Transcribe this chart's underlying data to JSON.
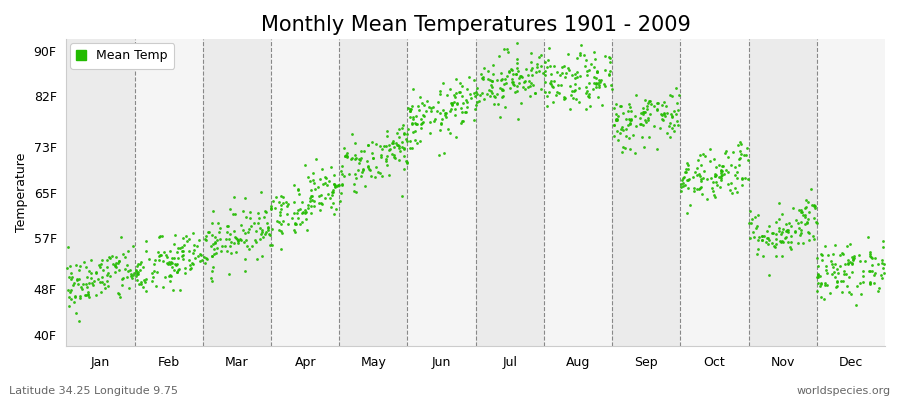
{
  "title": "Monthly Mean Temperatures 1901 - 2009",
  "ylabel": "Temperature",
  "dot_color": "#22BB00",
  "background_color": "#FFFFFF",
  "stripe_colors": [
    "#EBEBEB",
    "#F5F5F5"
  ],
  "months": [
    "Jan",
    "Feb",
    "Mar",
    "Apr",
    "May",
    "Jun",
    "Jul",
    "Aug",
    "Sep",
    "Oct",
    "Nov",
    "Dec"
  ],
  "month_centers": [
    0.5,
    1.5,
    2.5,
    3.5,
    4.5,
    5.5,
    6.5,
    7.5,
    8.5,
    9.5,
    10.5,
    11.5
  ],
  "ytick_labels": [
    "40F",
    "48F",
    "57F",
    "65F",
    "73F",
    "82F",
    "90F"
  ],
  "ytick_values": [
    40,
    48,
    57,
    65,
    73,
    82,
    90
  ],
  "ylim": [
    38,
    92
  ],
  "xlim": [
    0,
    12
  ],
  "mean_temps_F": [
    50.0,
    52.5,
    57.5,
    63.5,
    71.0,
    79.0,
    85.0,
    84.5,
    78.0,
    68.5,
    58.5,
    51.5
  ],
  "temp_spread_F": [
    2.5,
    2.5,
    2.5,
    2.5,
    2.5,
    2.5,
    2.5,
    2.5,
    2.5,
    2.5,
    2.5,
    2.5
  ],
  "monthly_trend_F": [
    3.0,
    4.0,
    5.0,
    5.0,
    5.0,
    4.0,
    2.0,
    1.0,
    2.0,
    4.0,
    4.0,
    3.0
  ],
  "n_years": 109,
  "legend_label": "Mean Temp",
  "footnote_left": "Latitude 34.25 Longitude 9.75",
  "footnote_right": "worldspecies.org",
  "title_fontsize": 15,
  "axis_label_fontsize": 9,
  "tick_fontsize": 9,
  "footnote_fontsize": 8
}
